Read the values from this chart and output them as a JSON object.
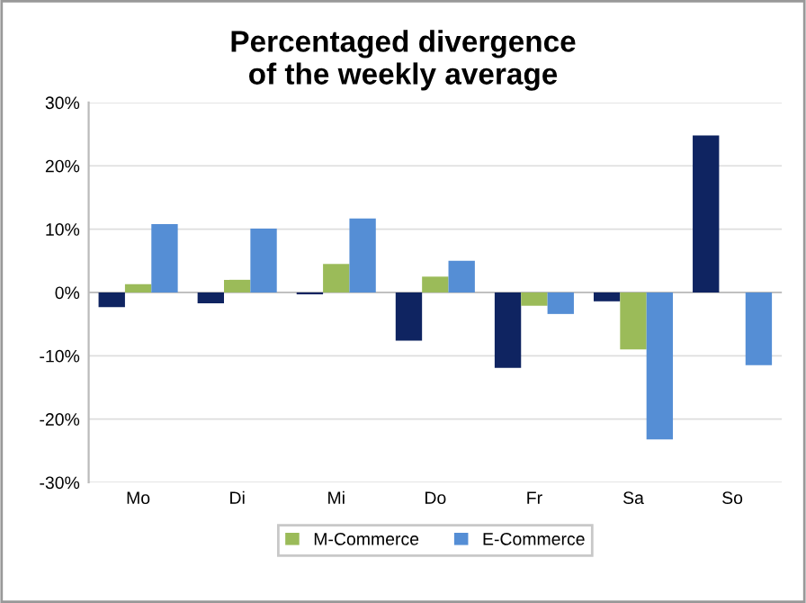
{
  "chart_data": {
    "type": "bar",
    "title": "Percentaged divergence\nof the weekly average",
    "categories": [
      "Mo",
      "Di",
      "Mi",
      "Do",
      "Fr",
      "Sa",
      "So"
    ],
    "series": [
      {
        "color": "#0f2461",
        "values": [
          -2.3,
          -1.7,
          -0.3,
          -7.6,
          -11.9,
          -1.4,
          24.8
        ]
      },
      {
        "name": "M-Commerce",
        "color": "#9bbb59",
        "values": [
          1.3,
          2.0,
          4.5,
          2.5,
          -2.1,
          -9.0,
          0
        ]
      },
      {
        "name": "E-Commerce",
        "color": "#558ed5",
        "values": [
          10.8,
          10.1,
          11.7,
          5.0,
          -3.4,
          -23.2,
          -11.5
        ]
      }
    ],
    "ylim": [
      -30,
      30
    ],
    "yticks": [
      {
        "value": -30,
        "label": "-30%"
      },
      {
        "value": -20,
        "label": "-20%"
      },
      {
        "value": -10,
        "label": "-10%"
      },
      {
        "value": 0,
        "label": "0%"
      },
      {
        "value": 10,
        "label": "10%"
      },
      {
        "value": 20,
        "label": "20%"
      },
      {
        "value": 30,
        "label": "30%"
      }
    ],
    "grid": "y",
    "legend": "bottom"
  }
}
